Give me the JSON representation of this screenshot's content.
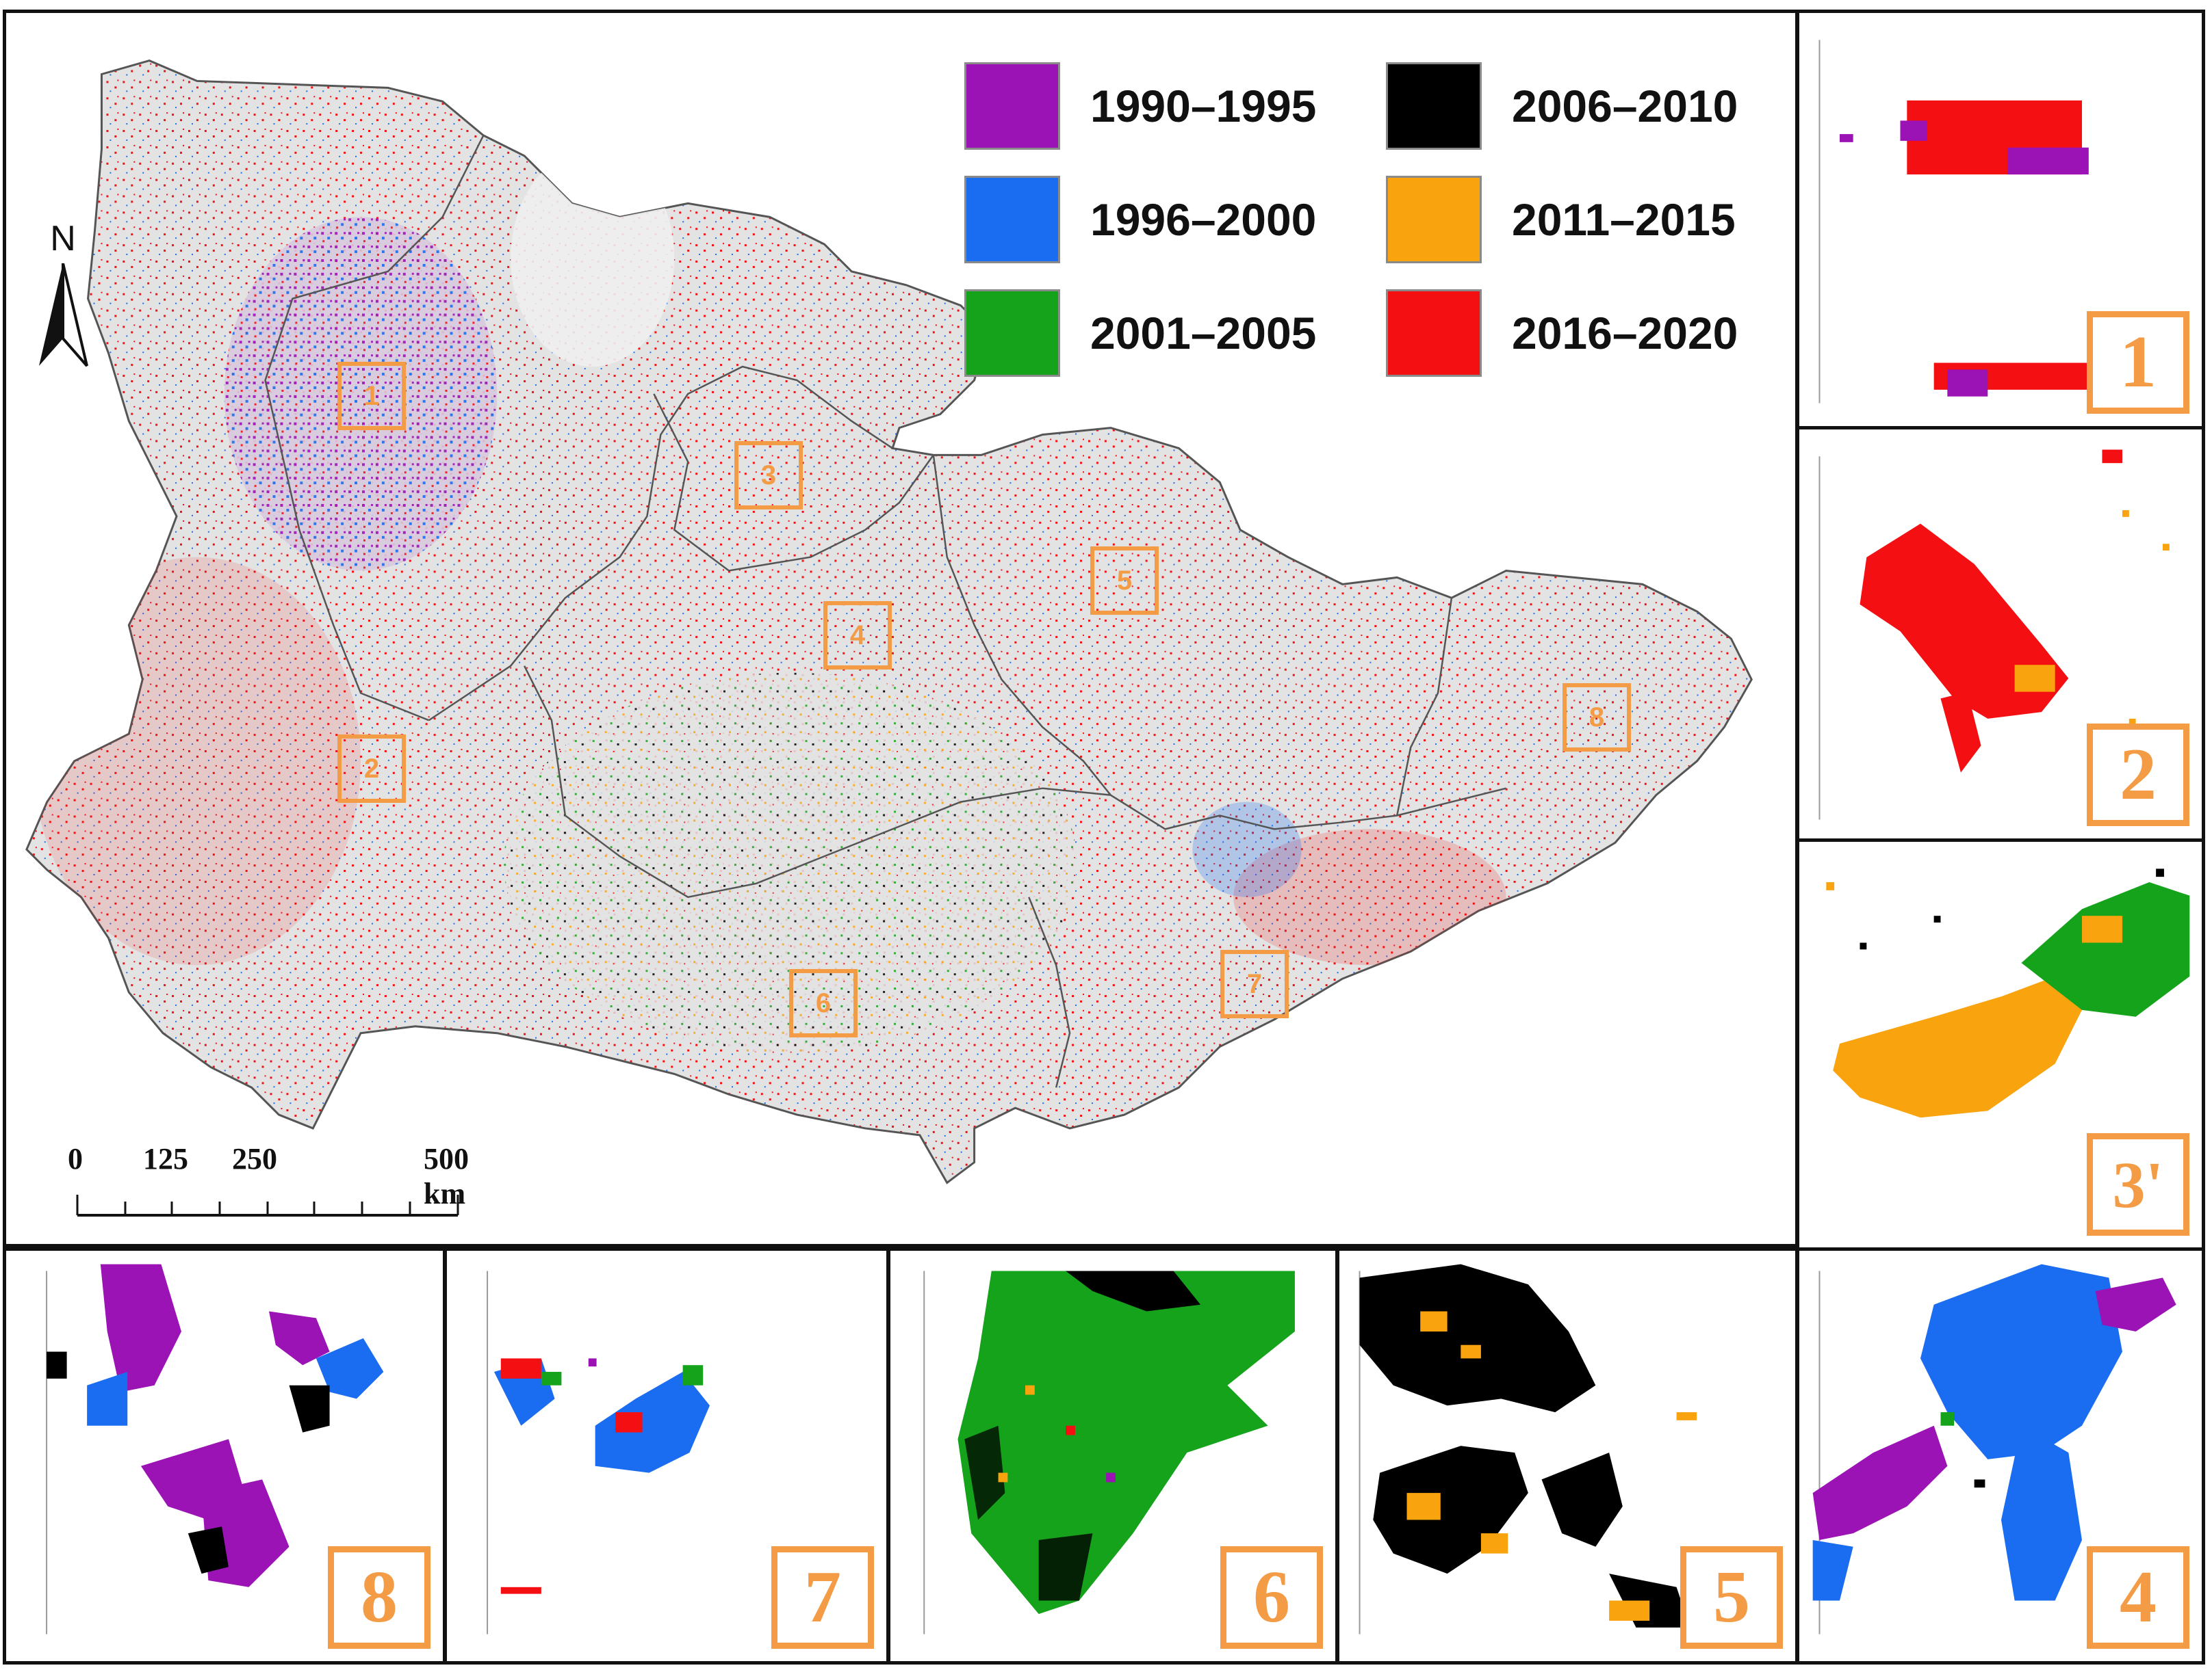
{
  "legend": [
    {
      "label": "1990–1995",
      "color": "#9b12b5"
    },
    {
      "label": "2006–2010",
      "color": "#000000"
    },
    {
      "label": "1996–2000",
      "color": "#1a6cf0"
    },
    {
      "label": "2011–2015",
      "color": "#f9a30e"
    },
    {
      "label": "2001–2005",
      "color": "#14a31a"
    },
    {
      "label": "2016–2020",
      "color": "#f40f12"
    }
  ],
  "north_arrow": {
    "label": "N"
  },
  "scale_bar": {
    "ticks": [
      "0",
      "125",
      "250",
      "500 km"
    ]
  },
  "map_regions": [
    "1",
    "2",
    "3",
    "4",
    "5",
    "6",
    "7",
    "8"
  ],
  "insets": [
    {
      "label": "1",
      "dominant": [
        "2016–2020",
        "1990–1995"
      ]
    },
    {
      "label": "2",
      "dominant": [
        "2016–2020",
        "2011–2015"
      ]
    },
    {
      "label": "3'",
      "dominant": [
        "2011–2015",
        "2001–2005"
      ]
    },
    {
      "label": "8",
      "dominant": [
        "1990–1995",
        "1996–2000",
        "2006–2010"
      ]
    },
    {
      "label": "7",
      "dominant": [
        "1996–2000",
        "2016–2020"
      ]
    },
    {
      "label": "6",
      "dominant": [
        "2001–2005",
        "2006–2010"
      ]
    },
    {
      "label": "5",
      "dominant": [
        "2006–2010",
        "2011–2015"
      ]
    },
    {
      "label": "4",
      "dominant": [
        "1996–2000",
        "1990–1995"
      ]
    }
  ],
  "colors": {
    "accent": "#f39b45",
    "land": "#e3e3e3",
    "border": "#555555"
  }
}
